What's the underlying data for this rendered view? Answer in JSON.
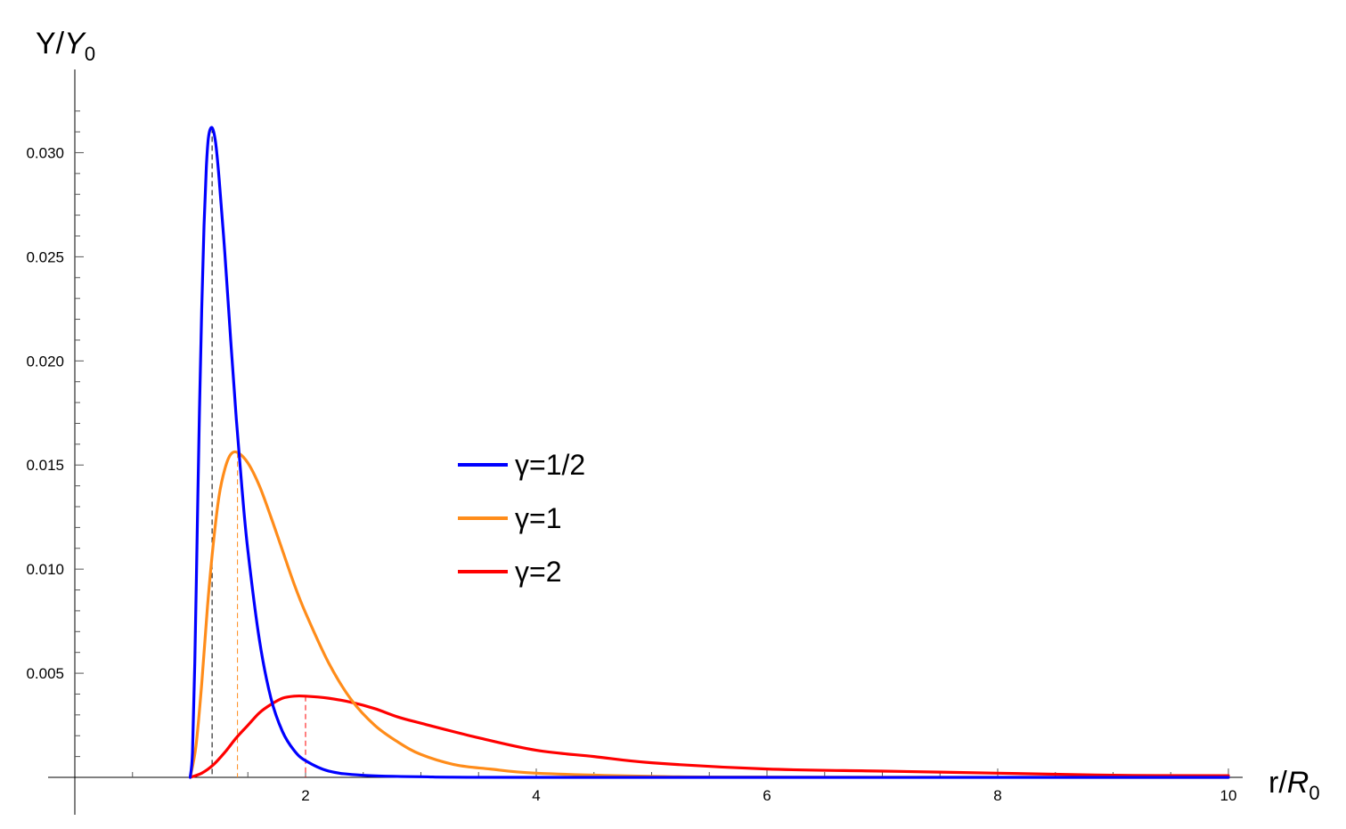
{
  "chart_data": {
    "type": "line",
    "title": "",
    "xlabel": {
      "base": "r/",
      "italic": "R",
      "sub": "0"
    },
    "ylabel": {
      "base": "Y/",
      "italic": "Y",
      "sub": "0"
    },
    "xlim": [
      0,
      10
    ],
    "ylim": [
      0,
      0.0325
    ],
    "x_ticks": [
      2,
      4,
      6,
      8,
      10
    ],
    "x_tick_labels": [
      "2",
      "4",
      "6",
      "8",
      "10"
    ],
    "y_ticks": [
      0.005,
      0.01,
      0.015,
      0.02,
      0.025,
      0.03
    ],
    "y_tick_labels": [
      "0.005",
      "0.010",
      "0.015",
      "0.020",
      "0.025",
      "0.030"
    ],
    "grid": false,
    "legend_position": "center",
    "series": [
      {
        "name": "γ=1/2",
        "gamma": 0.5,
        "color": "#0000ff",
        "peak": {
          "x": 1.19,
          "y": 0.0312
        },
        "points": [
          [
            1.0,
            0
          ],
          [
            1.02,
            0.0012
          ],
          [
            1.04,
            0.0055
          ],
          [
            1.06,
            0.0115
          ],
          [
            1.08,
            0.0175
          ],
          [
            1.1,
            0.0225
          ],
          [
            1.12,
            0.0265
          ],
          [
            1.14,
            0.0293
          ],
          [
            1.16,
            0.0308
          ],
          [
            1.19,
            0.0312
          ],
          [
            1.22,
            0.0305
          ],
          [
            1.25,
            0.0288
          ],
          [
            1.3,
            0.0252
          ],
          [
            1.35,
            0.0211
          ],
          [
            1.4,
            0.0172
          ],
          [
            1.45,
            0.0138
          ],
          [
            1.5,
            0.0109
          ],
          [
            1.6,
            0.0066
          ],
          [
            1.7,
            0.0038
          ],
          [
            1.8,
            0.0022
          ],
          [
            1.9,
            0.0013
          ],
          [
            2.0,
            0.0008
          ],
          [
            2.2,
            0.0003
          ],
          [
            2.5,
            0.0001
          ],
          [
            3.0,
            3e-05
          ],
          [
            4.0,
            0.0
          ],
          [
            10.0,
            0.0
          ]
        ]
      },
      {
        "name": "γ=1",
        "gamma": 1,
        "color": "#ff8c1a",
        "peak": {
          "x": 1.41,
          "y": 0.0156
        },
        "points": [
          [
            1.0,
            0
          ],
          [
            1.05,
            0.0015
          ],
          [
            1.1,
            0.0045
          ],
          [
            1.15,
            0.0082
          ],
          [
            1.2,
            0.0112
          ],
          [
            1.25,
            0.0135
          ],
          [
            1.3,
            0.0148
          ],
          [
            1.35,
            0.0155
          ],
          [
            1.41,
            0.0156
          ],
          [
            1.5,
            0.0151
          ],
          [
            1.6,
            0.014
          ],
          [
            1.7,
            0.0125
          ],
          [
            1.8,
            0.0109
          ],
          [
            1.9,
            0.0093
          ],
          [
            2.0,
            0.0079
          ],
          [
            2.2,
            0.0055
          ],
          [
            2.4,
            0.0037
          ],
          [
            2.6,
            0.0025
          ],
          [
            2.8,
            0.0017
          ],
          [
            3.0,
            0.0011
          ],
          [
            3.3,
            0.0006
          ],
          [
            3.6,
            0.0004
          ],
          [
            4.0,
            0.0002
          ],
          [
            5.0,
            5e-05
          ],
          [
            6.0,
            1e-05
          ],
          [
            10.0,
            0.0
          ]
        ]
      },
      {
        "name": "γ=2",
        "gamma": 2,
        "color": "#ff0000",
        "peak": {
          "x": 2.0,
          "y": 0.0039
        },
        "points": [
          [
            1.0,
            0
          ],
          [
            1.1,
            0.0002
          ],
          [
            1.2,
            0.0006
          ],
          [
            1.3,
            0.0012
          ],
          [
            1.4,
            0.0019
          ],
          [
            1.5,
            0.0025
          ],
          [
            1.6,
            0.0031
          ],
          [
            1.7,
            0.0035
          ],
          [
            1.8,
            0.0038
          ],
          [
            1.9,
            0.0039
          ],
          [
            2.0,
            0.0039
          ],
          [
            2.2,
            0.0038
          ],
          [
            2.4,
            0.0036
          ],
          [
            2.6,
            0.0033
          ],
          [
            2.8,
            0.0029
          ],
          [
            3.0,
            0.0026
          ],
          [
            3.5,
            0.0019
          ],
          [
            4.0,
            0.0013
          ],
          [
            4.5,
            0.001
          ],
          [
            5.0,
            0.0007
          ],
          [
            6.0,
            0.0004
          ],
          [
            7.0,
            0.0003
          ],
          [
            8.0,
            0.0002
          ],
          [
            9.0,
            0.0001
          ],
          [
            10.0,
            8e-05
          ]
        ]
      }
    ]
  }
}
